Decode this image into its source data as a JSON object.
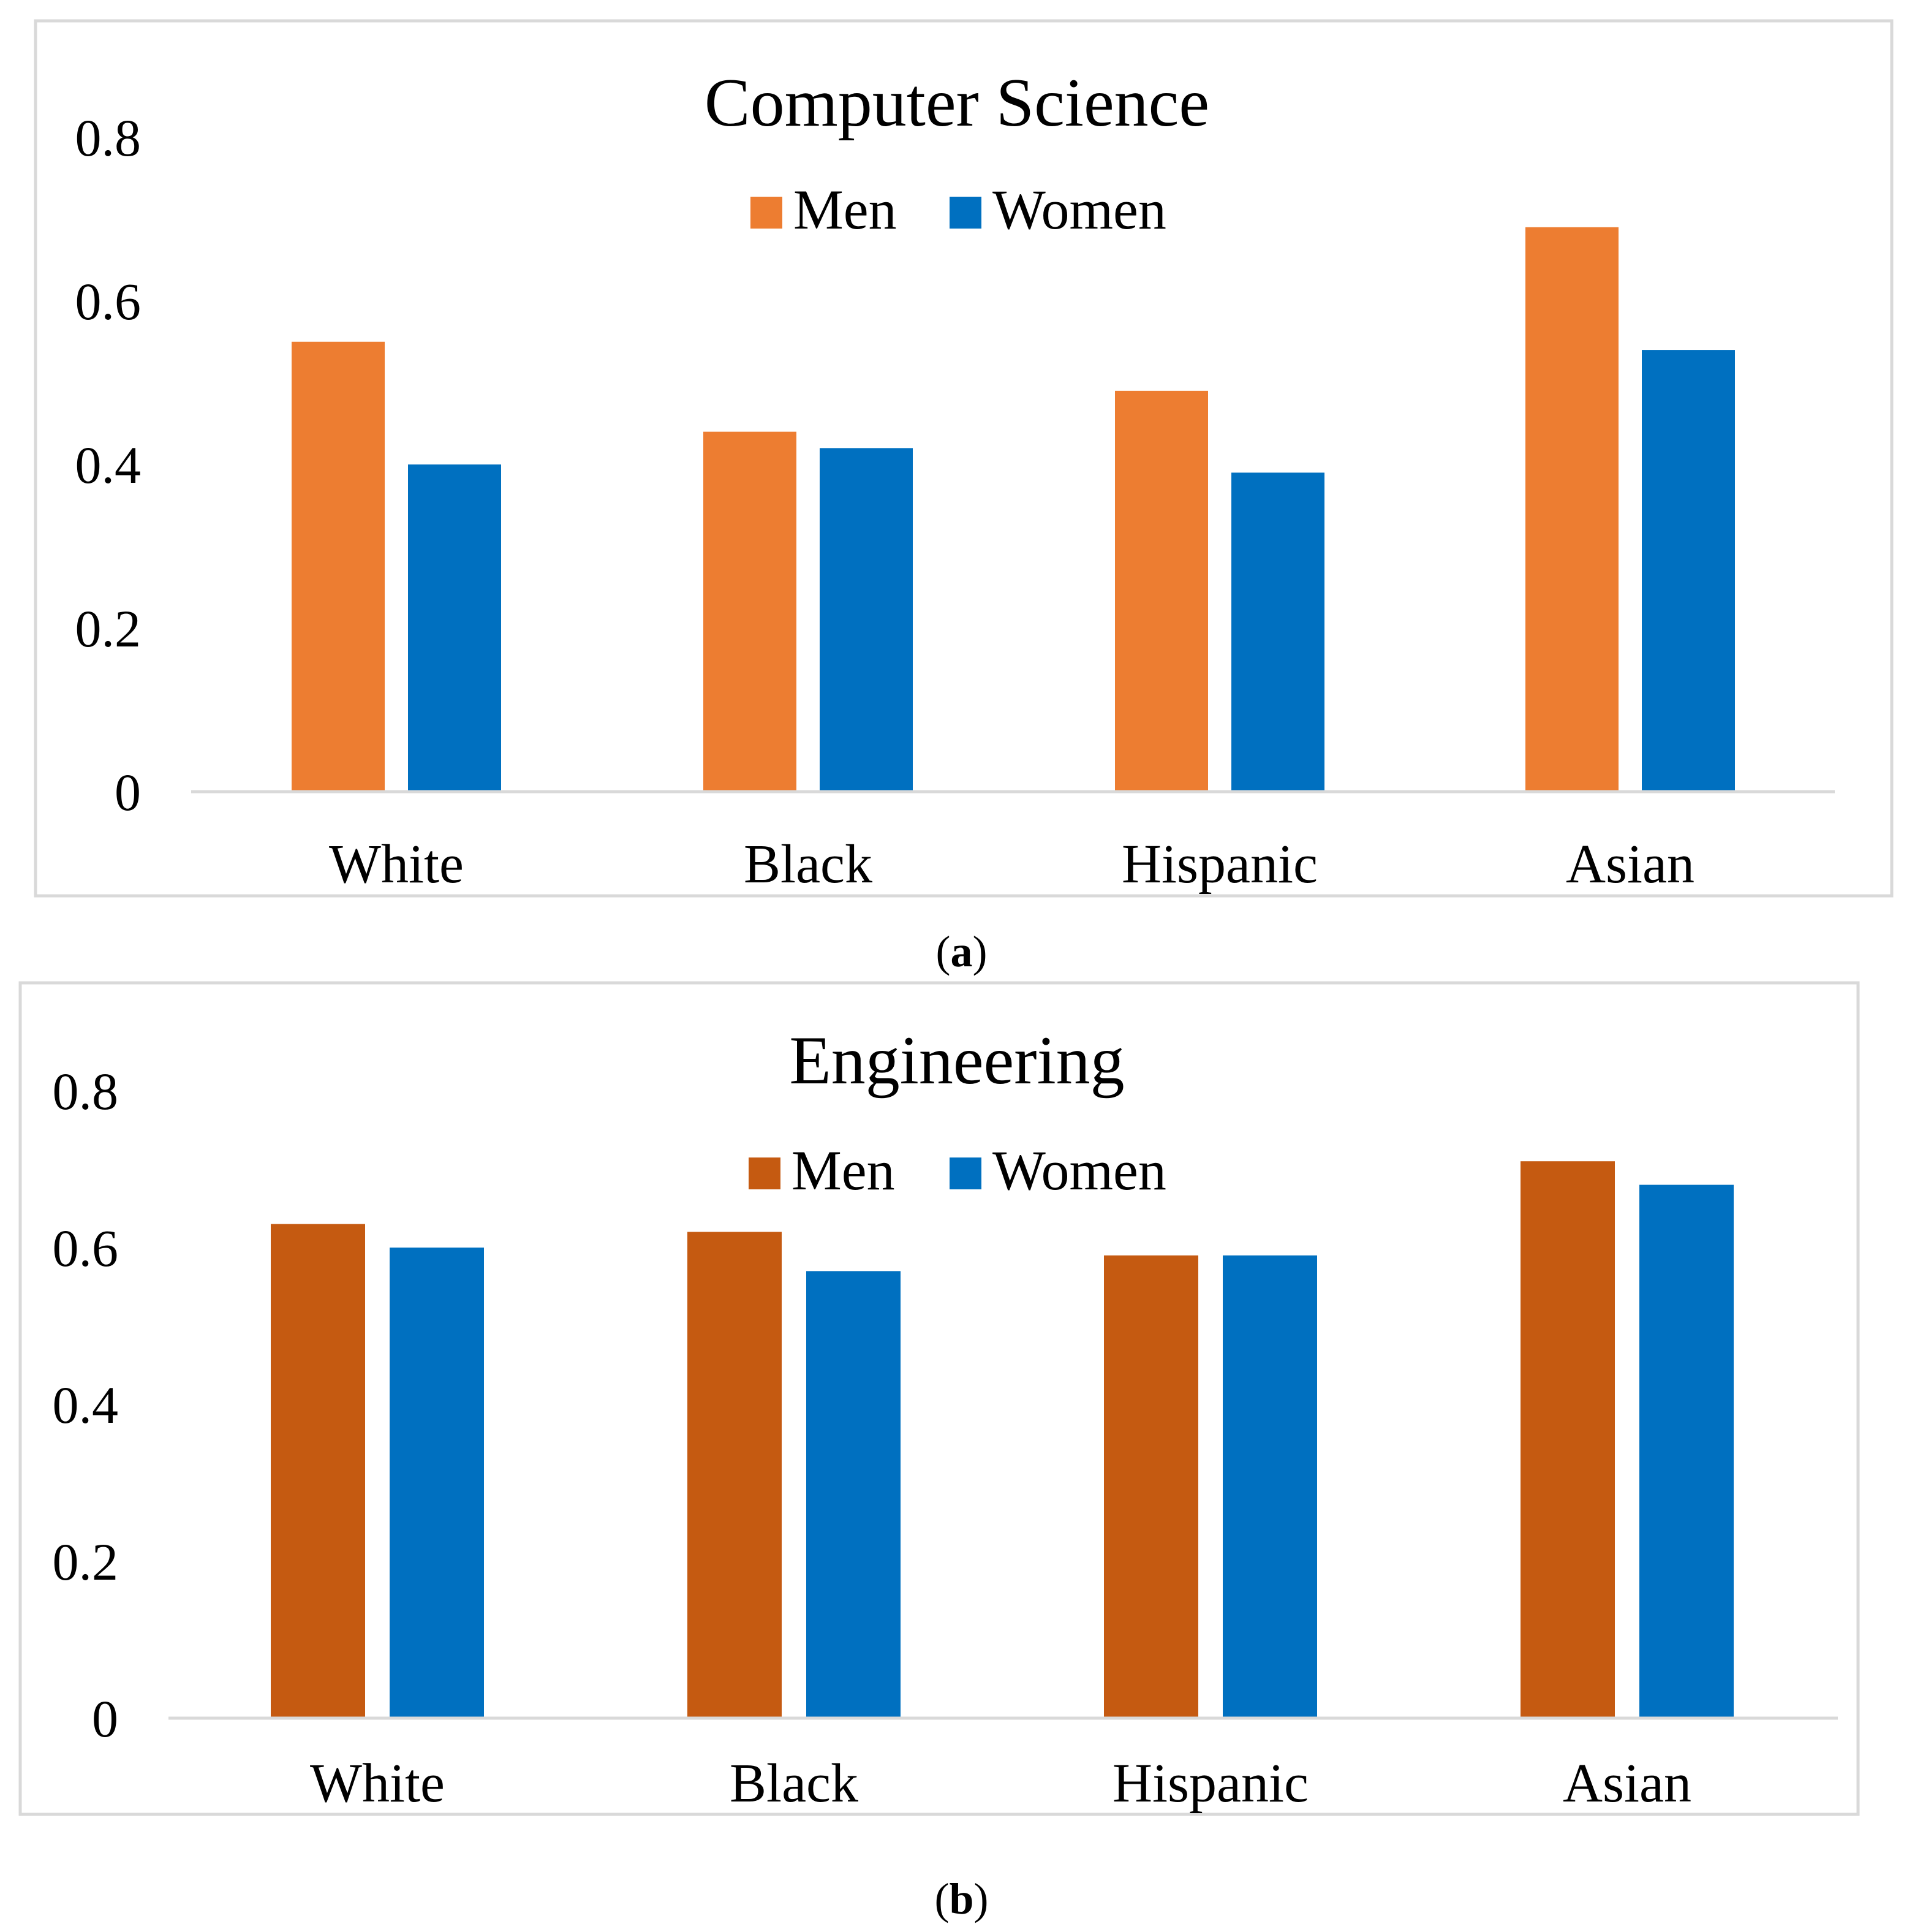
{
  "captions": {
    "a": "a",
    "b": "b"
  },
  "chart_data": [
    {
      "type": "bar",
      "title": "Computer Science",
      "categories": [
        "White",
        "Black",
        "Hispanic",
        "Asian"
      ],
      "series": [
        {
          "name": "Men",
          "values": [
            0.55,
            0.44,
            0.49,
            0.69
          ],
          "color": "#ED7D31"
        },
        {
          "name": "Women",
          "values": [
            0.4,
            0.42,
            0.39,
            0.54
          ],
          "color": "#0070C0"
        }
      ],
      "yticks": [
        "0",
        "0.2",
        "0.4",
        "0.6",
        "0.8"
      ],
      "ylim": [
        0,
        0.8
      ],
      "xlabel": "",
      "ylabel": "",
      "legend": "top-center"
    },
    {
      "type": "bar",
      "title": "Engineering",
      "categories": [
        "White",
        "Black",
        "Hispanic",
        "Asian"
      ],
      "series": [
        {
          "name": "Men",
          "values": [
            0.63,
            0.62,
            0.59,
            0.71
          ],
          "color": "#C55A11"
        },
        {
          "name": "Women",
          "values": [
            0.6,
            0.57,
            0.59,
            0.68
          ],
          "color": "#0070C0"
        }
      ],
      "yticks": [
        "0",
        "0.2",
        "0.4",
        "0.6",
        "0.8"
      ],
      "ylim": [
        0,
        0.8
      ],
      "xlabel": "",
      "ylabel": "",
      "legend": "top-center"
    }
  ]
}
